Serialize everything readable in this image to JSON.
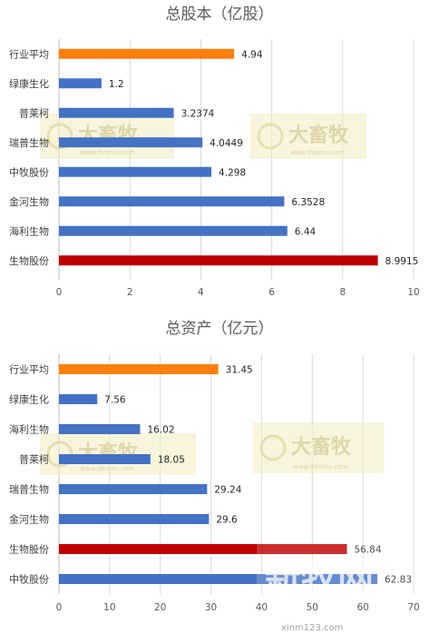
{
  "chart_data": [
    {
      "type": "bar",
      "orientation": "horizontal",
      "title": "总股本（亿股）",
      "categories": [
        "行业平均",
        "绿康生化",
        "普莱柯",
        "瑞普生物",
        "中牧股份",
        "金河生物",
        "海利生物",
        "生物股份"
      ],
      "values": [
        4.94,
        1.2,
        3.2374,
        4.0449,
        4.298,
        6.3528,
        6.44,
        8.9915
      ],
      "value_labels": [
        "4.94",
        "1.2",
        "3.2374",
        "4.0449",
        "4.298",
        "6.3528",
        "6.44",
        "8.9915"
      ],
      "colors": [
        "#ff7f0e",
        "#4472c4",
        "#4472c4",
        "#4472c4",
        "#4472c4",
        "#4472c4",
        "#4472c4",
        "#c00000"
      ],
      "xlim": [
        0,
        10
      ],
      "xticks": [
        0,
        2,
        4,
        6,
        8,
        10
      ],
      "grid": true,
      "legend": "none"
    },
    {
      "type": "bar",
      "orientation": "horizontal",
      "title": "总资产（亿元）",
      "categories": [
        "行业平均",
        "绿康生化",
        "海利生物",
        "普莱柯",
        "瑞普生物",
        "金河生物",
        "生物股份",
        "中牧股份"
      ],
      "values": [
        31.45,
        7.56,
        16.02,
        18.05,
        29.24,
        29.6,
        56.84,
        62.83
      ],
      "value_labels": [
        "31.45",
        "7.56",
        "16.02",
        "18.05",
        "29.24",
        "29.6",
        "56.84",
        "62.83"
      ],
      "colors": [
        "#ff7f0e",
        "#4472c4",
        "#4472c4",
        "#4472c4",
        "#4472c4",
        "#4472c4",
        "#c00000",
        "#4472c4"
      ],
      "xlim": [
        0,
        70
      ],
      "xticks": [
        0,
        10,
        20,
        30,
        40,
        50,
        60,
        70
      ],
      "grid": true,
      "legend": "none"
    }
  ],
  "watermarks": {
    "brand_cn": "大畜牧",
    "brand_url": "www.dxumu.com",
    "logo_text": "新牧网",
    "logo_url": "xinm123.com"
  }
}
